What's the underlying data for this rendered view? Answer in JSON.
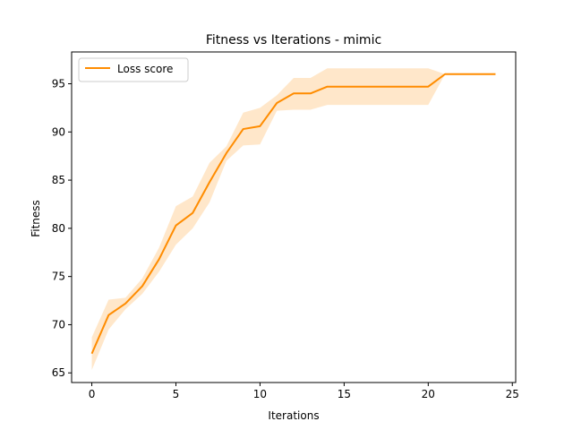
{
  "chart_data": {
    "type": "line",
    "title": "Fitness vs Iterations - mimic",
    "xlabel": "Iterations",
    "ylabel": "Fitness",
    "xlim": [
      -1.2,
      25.2
    ],
    "ylim": [
      64.0,
      98.3
    ],
    "xticks": [
      0,
      5,
      10,
      15,
      20,
      25
    ],
    "yticks": [
      65,
      70,
      75,
      80,
      85,
      90,
      95
    ],
    "grid": false,
    "legend_position": "top-left",
    "colors": {
      "line": "#ff8c00",
      "band": "#ffe4c4"
    },
    "series": [
      {
        "name": "Loss score",
        "x": [
          0,
          1,
          2,
          3,
          4,
          5,
          6,
          7,
          8,
          9,
          10,
          11,
          12,
          13,
          14,
          15,
          16,
          17,
          18,
          19,
          20,
          21,
          22,
          23,
          24
        ],
        "y": [
          67.0,
          71.0,
          72.2,
          74.0,
          76.8,
          80.3,
          81.6,
          84.8,
          87.8,
          90.3,
          90.6,
          93.0,
          94.0,
          94.0,
          94.7,
          94.7,
          94.7,
          94.7,
          94.7,
          94.7,
          94.7,
          96.0,
          96.0,
          96.0,
          96.0
        ],
        "lower": [
          65.3,
          69.5,
          71.6,
          73.2,
          75.5,
          78.3,
          80.0,
          82.7,
          87.0,
          88.6,
          88.7,
          92.2,
          92.3,
          92.3,
          92.8,
          92.8,
          92.8,
          92.8,
          92.8,
          92.8,
          92.8,
          96.0,
          96.0,
          96.0,
          96.0
        ],
        "upper": [
          68.7,
          72.6,
          72.8,
          74.8,
          78.0,
          82.3,
          83.3,
          86.8,
          88.5,
          92.0,
          92.5,
          93.8,
          95.6,
          95.6,
          96.6,
          96.6,
          96.6,
          96.6,
          96.6,
          96.6,
          96.6,
          96.0,
          96.0,
          96.0,
          96.0
        ]
      }
    ]
  }
}
